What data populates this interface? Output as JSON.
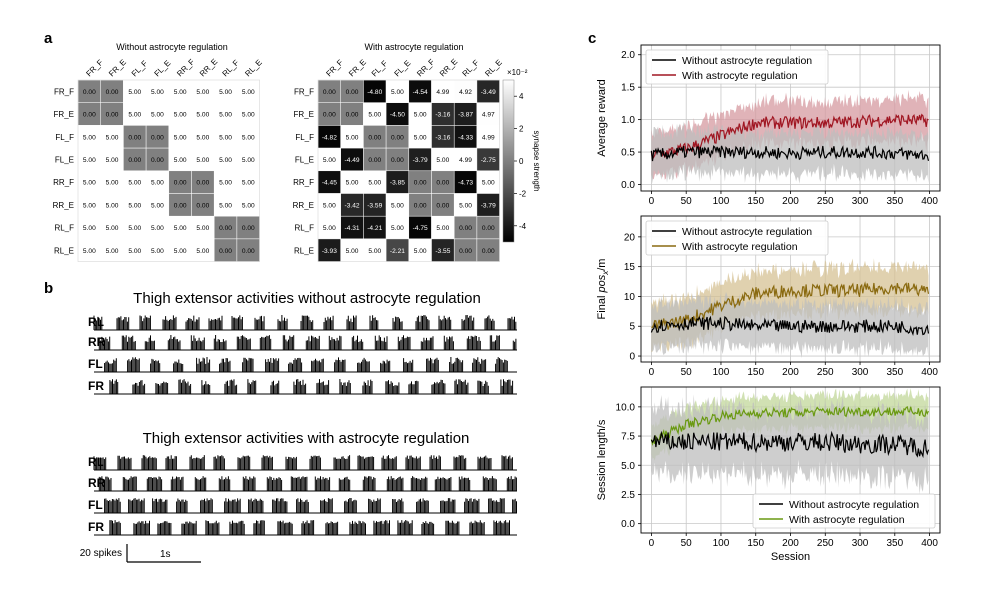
{
  "panel_labels": {
    "a": "a",
    "b": "b",
    "c": "c"
  },
  "colors": {
    "black_series": "#000000",
    "red_series": "#a01622",
    "red_band": "#d59aa0",
    "gold_series": "#8a6a10",
    "gold_band": "#d6c194",
    "green_series": "#6a9a12",
    "green_band": "#c2d79a",
    "grey_band": "#bdbdbd"
  },
  "chart_data": [
    {
      "type": "heatmap",
      "panel": "a",
      "title": "Without astrocyte regulation",
      "col_labels": [
        "FR_F",
        "FR_E",
        "FL_F",
        "FL_E",
        "RR_F",
        "RR_E",
        "RL_F",
        "RL_E"
      ],
      "row_labels": [
        "FR_F",
        "FR_E",
        "FL_F",
        "FL_E",
        "RR_F",
        "RR_E",
        "RL_F",
        "RL_E"
      ],
      "values": [
        [
          "0.00",
          "0.00",
          "5.00",
          "5.00",
          "5.00",
          "5.00",
          "5.00",
          "5.00"
        ],
        [
          "0.00",
          "0.00",
          "5.00",
          "5.00",
          "5.00",
          "5.00",
          "5.00",
          "5.00"
        ],
        [
          "5.00",
          "5.00",
          "0.00",
          "0.00",
          "5.00",
          "5.00",
          "5.00",
          "5.00"
        ],
        [
          "5.00",
          "5.00",
          "0.00",
          "0.00",
          "5.00",
          "5.00",
          "5.00",
          "5.00"
        ],
        [
          "5.00",
          "5.00",
          "5.00",
          "5.00",
          "0.00",
          "0.00",
          "5.00",
          "5.00"
        ],
        [
          "5.00",
          "5.00",
          "5.00",
          "5.00",
          "0.00",
          "0.00",
          "5.00",
          "5.00"
        ],
        [
          "5.00",
          "5.00",
          "5.00",
          "5.00",
          "5.00",
          "5.00",
          "0.00",
          "0.00"
        ],
        [
          "5.00",
          "5.00",
          "5.00",
          "5.00",
          "5.00",
          "5.00",
          "0.00",
          "0.00"
        ]
      ],
      "vmin": -5,
      "vmax": 5
    },
    {
      "type": "heatmap",
      "panel": "a",
      "title": "With astrocyte regulation",
      "col_labels": [
        "FR_F",
        "FR_E",
        "FL_F",
        "FL_E",
        "RR_F",
        "RR_E",
        "RL_F",
        "RL_E"
      ],
      "row_labels": [
        "FR_F",
        "FR_E",
        "FL_F",
        "FL_E",
        "RR_F",
        "RR_E",
        "RL_F",
        "RL_E"
      ],
      "values": [
        [
          "0.00",
          "0.00",
          "-4.80",
          "5.00",
          "-4.54",
          "4.99",
          "4.92",
          "-3.49"
        ],
        [
          "0.00",
          "0.00",
          "5.00",
          "-4.50",
          "5.00",
          "-3.16",
          "-3.87",
          "4.97"
        ],
        [
          "-4.82",
          "5.00",
          "0.00",
          "0.00",
          "5.00",
          "-3.16",
          "-4.33",
          "4.99"
        ],
        [
          "5.00",
          "-4.49",
          "0.00",
          "0.00",
          "-3.79",
          "5.00",
          "4.99",
          "-2.75"
        ],
        [
          "-4.45",
          "5.00",
          "5.00",
          "-3.85",
          "0.00",
          "0.00",
          "-4.73",
          "5.00"
        ],
        [
          "5.00",
          "-3.42",
          "-3.59",
          "5.00",
          "0.00",
          "0.00",
          "5.00",
          "-3.79"
        ],
        [
          "5.00",
          "-4.31",
          "-4.21",
          "5.00",
          "-4.75",
          "5.00",
          "0.00",
          "0.00"
        ],
        [
          "-3.93",
          "5.00",
          "5.00",
          "-2.21",
          "5.00",
          "-3.55",
          "0.00",
          "0.00"
        ]
      ],
      "vmin": -5,
      "vmax": 5,
      "colorbar": {
        "label": "synapse strength",
        "ticks": [
          "4",
          "2",
          "0",
          "-2",
          "-4"
        ],
        "multiplier": "×10⁻²"
      }
    },
    {
      "type": "raster",
      "panel": "b",
      "title": "Thigh extensor activities without astrocyte regulation",
      "rows": [
        "RL",
        "RR",
        "FL",
        "FR"
      ]
    },
    {
      "type": "raster",
      "panel": "b",
      "title": "Thigh extensor activities with astrocyte regulation",
      "rows": [
        "RL",
        "RR",
        "FL",
        "FR"
      ],
      "scalebar": {
        "count_label": "20 spikes",
        "time_label": "1s"
      }
    },
    {
      "type": "line",
      "panel": "c",
      "ylabel": "Average reward",
      "ylim": [
        -0.1,
        2.15
      ],
      "yticks": [
        "0.0",
        "0.5",
        "1.0",
        "1.5",
        "2.0"
      ],
      "xlim": [
        -15,
        415
      ],
      "xticks": [
        "0",
        "50",
        "100",
        "150",
        "200",
        "250",
        "300",
        "350",
        "400"
      ],
      "legend": "top-left",
      "series": [
        {
          "name": "Without astrocyte regulation",
          "x": [
            0,
            50,
            100,
            150,
            200,
            250,
            300,
            350,
            400
          ],
          "values": [
            0.45,
            0.5,
            0.5,
            0.5,
            0.48,
            0.5,
            0.5,
            0.48,
            0.45
          ],
          "spread": 0.35
        },
        {
          "name": "With astrocyte regulation",
          "x": [
            0,
            50,
            100,
            150,
            200,
            250,
            300,
            350,
            400
          ],
          "values": [
            0.45,
            0.55,
            0.75,
            0.95,
            0.95,
            0.95,
            0.97,
            1.0,
            0.98
          ],
          "spread": 0.35
        }
      ]
    },
    {
      "type": "line",
      "panel": "c",
      "ylabel": "Final pos_x/m",
      "ylim": [
        -1,
        23.5
      ],
      "yticks": [
        "0",
        "5",
        "10",
        "15",
        "20"
      ],
      "xlim": [
        -15,
        415
      ],
      "xticks": [
        "0",
        "50",
        "100",
        "150",
        "200",
        "250",
        "300",
        "350",
        "400"
      ],
      "legend": "top-left",
      "series": [
        {
          "name": "Without astrocyte regulation",
          "x": [
            0,
            50,
            100,
            150,
            200,
            250,
            300,
            350,
            400
          ],
          "values": [
            5,
            5.5,
            5.5,
            5,
            5,
            5,
            5,
            5,
            4.5
          ],
          "spread": 4
        },
        {
          "name": "With astrocyte regulation",
          "x": [
            0,
            50,
            100,
            150,
            200,
            250,
            300,
            350,
            400
          ],
          "values": [
            5,
            6,
            8.5,
            10.5,
            11,
            11,
            11,
            11.5,
            11
          ],
          "spread": 4
        }
      ]
    },
    {
      "type": "line",
      "panel": "c",
      "ylabel": "Session length/s",
      "ylim": [
        -0.8,
        11.7
      ],
      "yticks": [
        "0.0",
        "2.5",
        "5.0",
        "7.5",
        "10.0"
      ],
      "xlim": [
        -15,
        415
      ],
      "xticks": [
        "0",
        "50",
        "100",
        "150",
        "200",
        "250",
        "300",
        "350",
        "400"
      ],
      "xlabel": "Session",
      "legend": "bottom-right",
      "series": [
        {
          "name": "Without astrocyte regulation",
          "x": [
            0,
            50,
            100,
            150,
            200,
            250,
            300,
            350,
            400
          ],
          "values": [
            7,
            7,
            7,
            7,
            7,
            7,
            6.8,
            6.8,
            6.5
          ],
          "spread": 3
        },
        {
          "name": "With astrocyte regulation",
          "x": [
            0,
            50,
            100,
            150,
            200,
            250,
            300,
            350,
            400
          ],
          "values": [
            7,
            8.5,
            9.2,
            9.5,
            9.5,
            9.6,
            9.6,
            9.6,
            9.6
          ],
          "spread": 1.5
        }
      ]
    }
  ]
}
